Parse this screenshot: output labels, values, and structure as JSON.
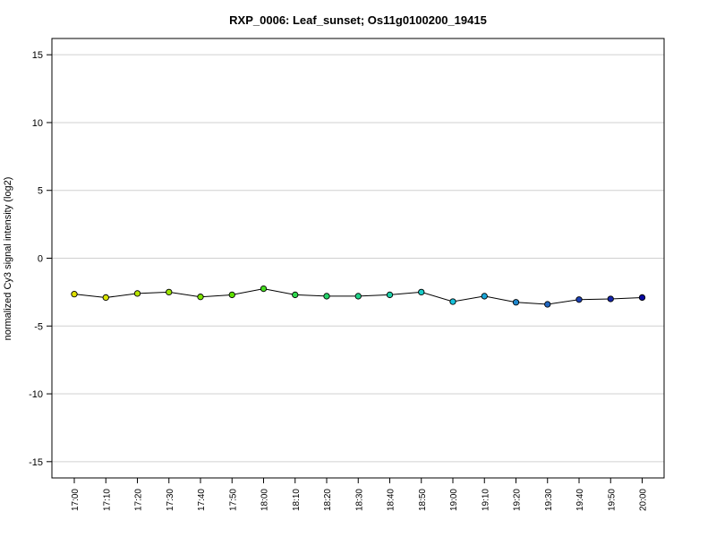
{
  "chart_data": {
    "type": "line",
    "title": "RXP_0006: Leaf_sunset; Os11g0100200_19415",
    "xlabel": "",
    "ylabel": "normalized Cy3 signal intensity (log2)",
    "ylim": [
      -16.2,
      16.2
    ],
    "yticks": [
      -15,
      -10,
      -5,
      0,
      5,
      10,
      15
    ],
    "grid": true,
    "categories": [
      "17:00",
      "17:10",
      "17:20",
      "17:30",
      "17:40",
      "17:50",
      "18:00",
      "18:10",
      "18:20",
      "18:30",
      "18:40",
      "18:50",
      "19:00",
      "19:10",
      "19:20",
      "19:30",
      "19:40",
      "19:50",
      "20:00"
    ],
    "series": [
      {
        "values": [
          -2.65,
          -2.9,
          -2.6,
          -2.5,
          -2.85,
          -2.7,
          -2.25,
          -2.7,
          -2.8,
          -2.8,
          -2.7,
          -2.5,
          -3.2,
          -2.8,
          -3.25,
          -3.4,
          -3.05,
          -3.0,
          -2.9
        ],
        "point_colors": [
          "#e0e000",
          "#d8e400",
          "#b8e400",
          "#9ee600",
          "#7ee400",
          "#5ee200",
          "#44dc1e",
          "#30d84e",
          "#26d46a",
          "#20d288",
          "#1cd0a8",
          "#18ccc8",
          "#16c2dc",
          "#1aa6d8",
          "#1e86cc",
          "#2066c0",
          "#1c40b4",
          "#1424aa",
          "#0a0aa0"
        ]
      }
    ]
  }
}
